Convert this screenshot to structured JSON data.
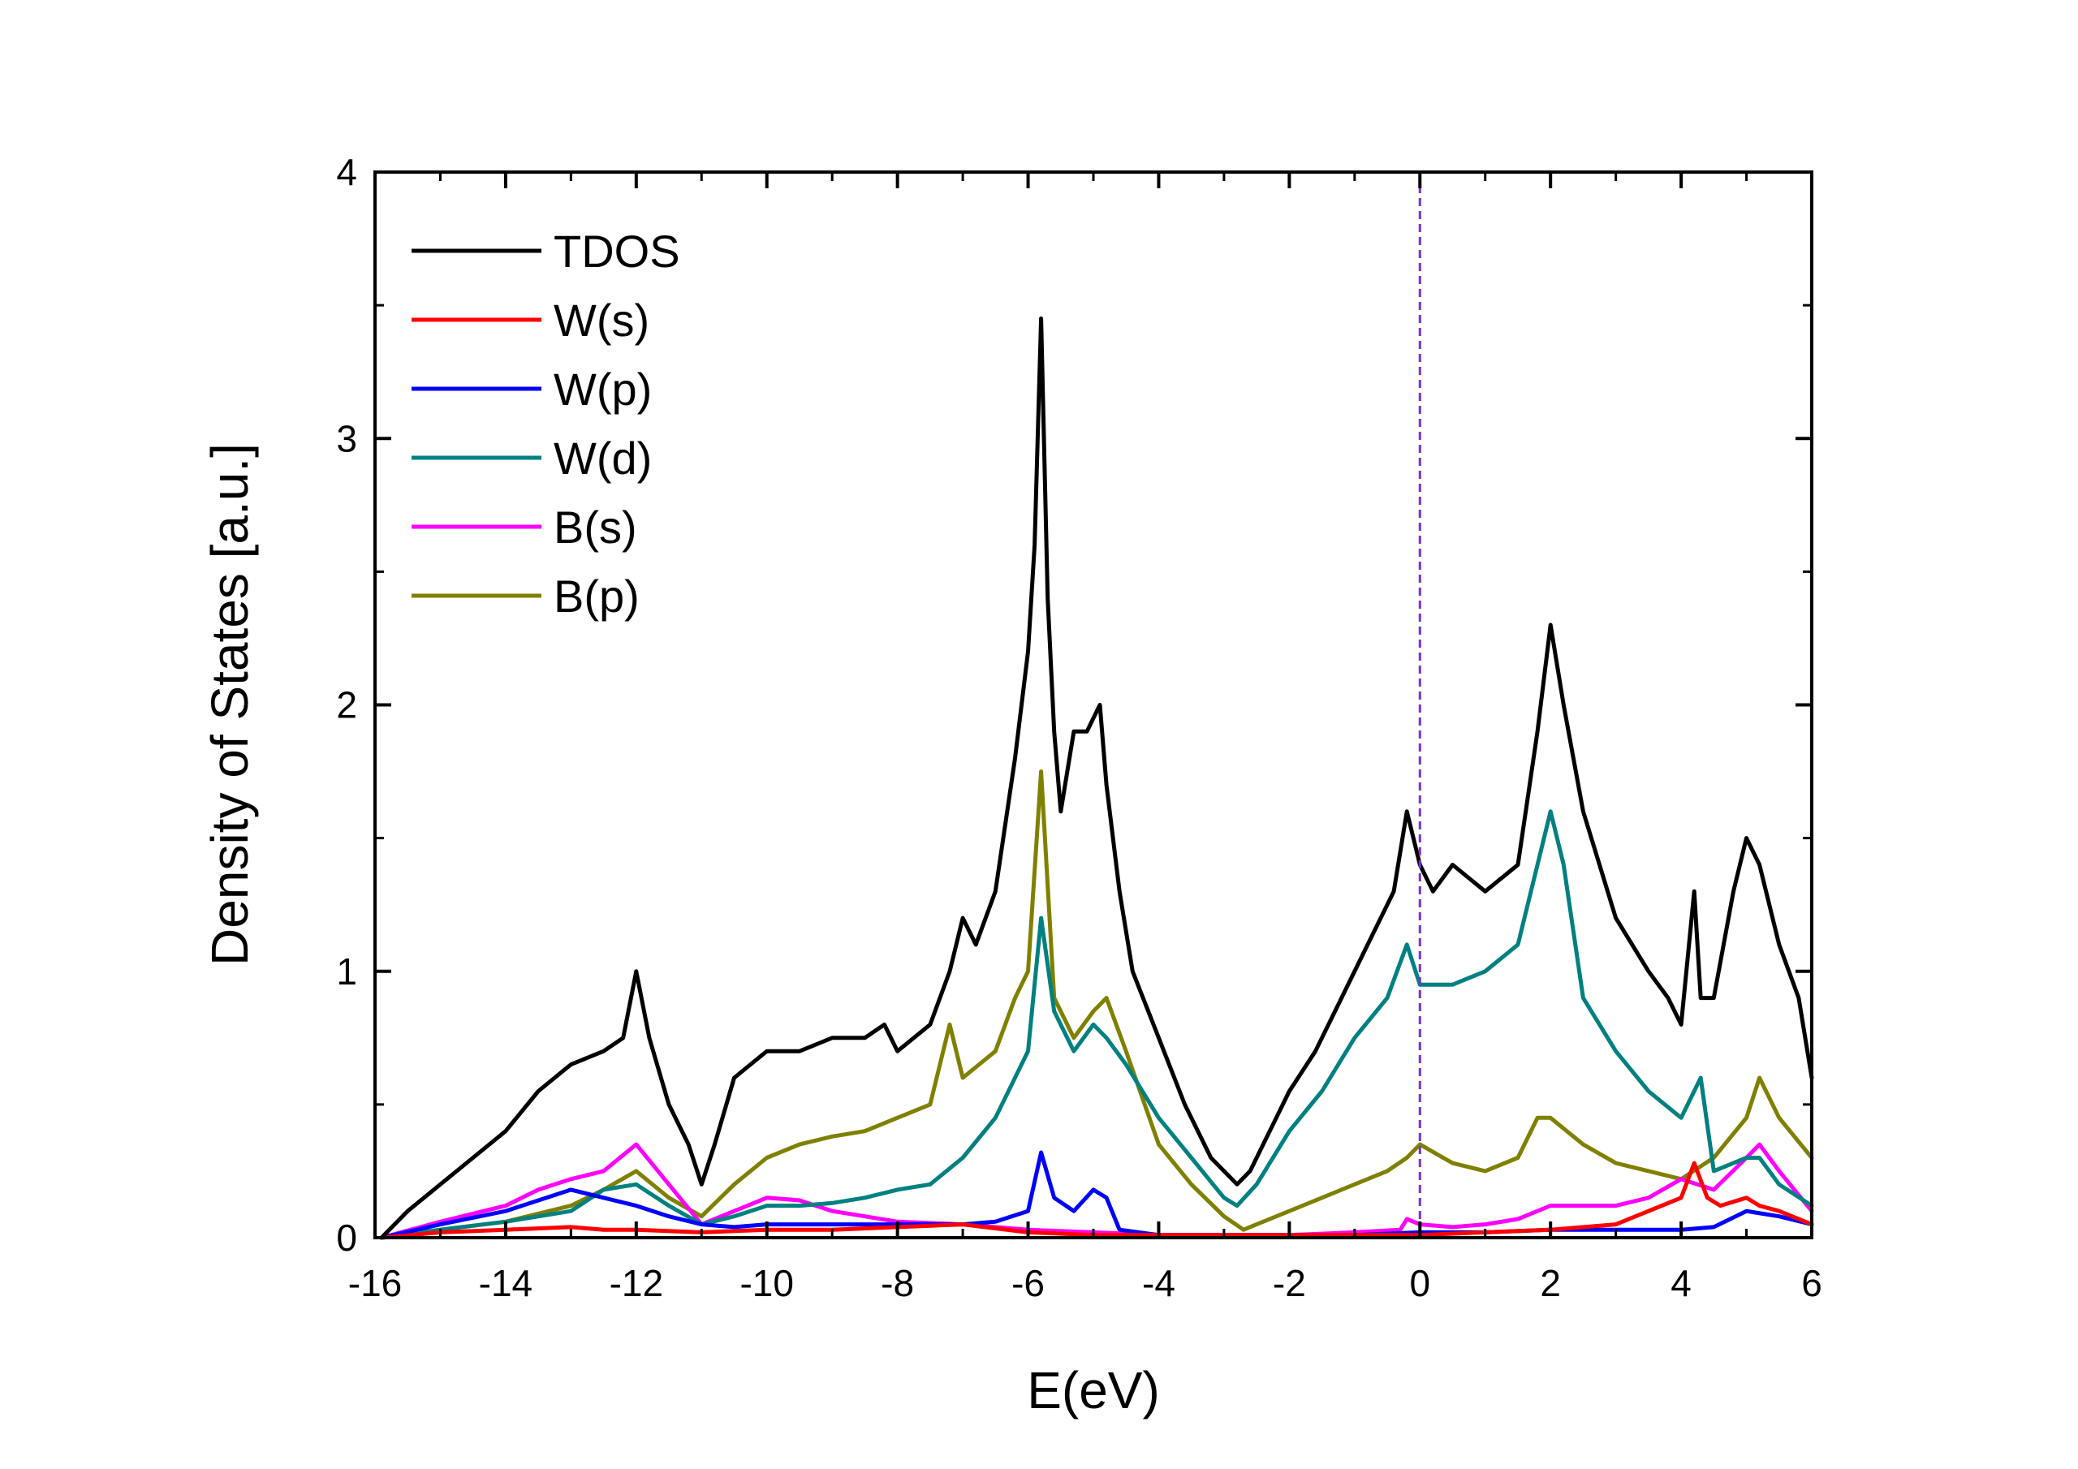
{
  "chart_data": {
    "type": "line",
    "xlabel": "E(eV)",
    "ylabel": "Density of States [a.u.]",
    "xlim": [
      -16,
      6
    ],
    "ylim": [
      0,
      4
    ],
    "xticks": [
      -16,
      -14,
      -12,
      -10,
      -8,
      -6,
      -4,
      -2,
      0,
      2,
      4,
      6
    ],
    "yticks": [
      0,
      1,
      2,
      3,
      4
    ],
    "grid": false,
    "legend_position": "top-left",
    "fermi_level": {
      "x": 0,
      "style": "dashed",
      "color": "#7b2fd8"
    },
    "series": [
      {
        "name": "TDOS",
        "color": "#000000",
        "x": [
          -15.9,
          -15.5,
          -15.0,
          -14.5,
          -14.0,
          -13.5,
          -13.0,
          -12.5,
          -12.2,
          -12.0,
          -11.8,
          -11.5,
          -11.2,
          -11.0,
          -10.8,
          -10.5,
          -10.0,
          -9.5,
          -9.0,
          -8.5,
          -8.2,
          -8.0,
          -7.5,
          -7.2,
          -7.0,
          -6.8,
          -6.5,
          -6.2,
          -6.0,
          -5.9,
          -5.8,
          -5.7,
          -5.6,
          -5.5,
          -5.3,
          -5.1,
          -4.9,
          -4.8,
          -4.6,
          -4.4,
          -4.0,
          -3.6,
          -3.2,
          -2.8,
          -2.6,
          -2.2,
          -2.0,
          -1.6,
          -1.2,
          -0.8,
          -0.4,
          -0.2,
          0.0,
          0.2,
          0.5,
          1.0,
          1.5,
          1.8,
          2.0,
          2.2,
          2.5,
          3.0,
          3.5,
          3.8,
          4.0,
          4.2,
          4.3,
          4.5,
          4.8,
          5.0,
          5.2,
          5.5,
          5.8,
          6.0
        ],
        "y": [
          0.0,
          0.1,
          0.2,
          0.3,
          0.4,
          0.55,
          0.65,
          0.7,
          0.75,
          1.0,
          0.75,
          0.5,
          0.35,
          0.2,
          0.35,
          0.6,
          0.7,
          0.7,
          0.75,
          0.75,
          0.8,
          0.7,
          0.8,
          1.0,
          1.2,
          1.1,
          1.3,
          1.8,
          2.2,
          2.6,
          3.45,
          2.4,
          1.9,
          1.6,
          1.9,
          1.9,
          2.0,
          1.7,
          1.3,
          1.0,
          0.75,
          0.5,
          0.3,
          0.2,
          0.25,
          0.45,
          0.55,
          0.7,
          0.9,
          1.1,
          1.3,
          1.6,
          1.4,
          1.3,
          1.4,
          1.3,
          1.4,
          1.9,
          2.3,
          2.0,
          1.6,
          1.2,
          1.0,
          0.9,
          0.8,
          1.3,
          0.9,
          0.9,
          1.3,
          1.5,
          1.4,
          1.1,
          0.9,
          0.6
        ]
      },
      {
        "name": "W(s)",
        "color": "#ff0000",
        "x": [
          -15.9,
          -15.0,
          -14.0,
          -13.0,
          -12.5,
          -12.0,
          -11.0,
          -10.0,
          -9.0,
          -8.0,
          -7.0,
          -6.0,
          -5.0,
          -4.0,
          -3.0,
          -2.0,
          -1.0,
          0.0,
          1.0,
          2.0,
          3.0,
          3.5,
          4.0,
          4.2,
          4.4,
          4.6,
          5.0,
          5.2,
          5.5,
          6.0
        ],
        "y": [
          0.0,
          0.02,
          0.03,
          0.04,
          0.03,
          0.03,
          0.02,
          0.03,
          0.03,
          0.04,
          0.05,
          0.02,
          0.01,
          0.01,
          0.01,
          0.01,
          0.01,
          0.01,
          0.02,
          0.03,
          0.05,
          0.1,
          0.15,
          0.28,
          0.15,
          0.12,
          0.15,
          0.12,
          0.1,
          0.05
        ]
      },
      {
        "name": "W(p)",
        "color": "#0000ff",
        "x": [
          -15.9,
          -15.0,
          -14.0,
          -13.0,
          -12.5,
          -12.0,
          -11.5,
          -11.0,
          -10.5,
          -10.0,
          -9.0,
          -8.0,
          -7.0,
          -6.5,
          -6.0,
          -5.8,
          -5.6,
          -5.3,
          -5.0,
          -4.8,
          -4.6,
          -4.0,
          -3.0,
          -2.0,
          -1.0,
          0.0,
          1.0,
          2.0,
          3.0,
          4.0,
          4.5,
          5.0,
          5.5,
          6.0
        ],
        "y": [
          0.0,
          0.05,
          0.1,
          0.18,
          0.15,
          0.12,
          0.08,
          0.05,
          0.04,
          0.05,
          0.05,
          0.05,
          0.05,
          0.06,
          0.1,
          0.32,
          0.15,
          0.1,
          0.18,
          0.15,
          0.03,
          0.01,
          0.01,
          0.01,
          0.01,
          0.02,
          0.02,
          0.03,
          0.03,
          0.03,
          0.04,
          0.1,
          0.08,
          0.05
        ]
      },
      {
        "name": "W(d)",
        "color": "#008080",
        "x": [
          -15.9,
          -15.0,
          -14.0,
          -13.0,
          -12.5,
          -12.0,
          -11.5,
          -11.0,
          -10.5,
          -10.0,
          -9.5,
          -9.0,
          -8.5,
          -8.0,
          -7.5,
          -7.0,
          -6.5,
          -6.0,
          -5.8,
          -5.6,
          -5.3,
          -5.0,
          -4.8,
          -4.5,
          -4.0,
          -3.5,
          -3.0,
          -2.8,
          -2.5,
          -2.0,
          -1.5,
          -1.0,
          -0.5,
          -0.2,
          0.0,
          0.5,
          1.0,
          1.5,
          1.8,
          2.0,
          2.2,
          2.5,
          3.0,
          3.5,
          4.0,
          4.3,
          4.5,
          5.0,
          5.2,
          5.5,
          6.0
        ],
        "y": [
          0.0,
          0.03,
          0.06,
          0.1,
          0.18,
          0.2,
          0.12,
          0.05,
          0.08,
          0.12,
          0.12,
          0.13,
          0.15,
          0.18,
          0.2,
          0.3,
          0.45,
          0.7,
          1.2,
          0.85,
          0.7,
          0.8,
          0.75,
          0.65,
          0.45,
          0.3,
          0.15,
          0.12,
          0.2,
          0.4,
          0.55,
          0.75,
          0.9,
          1.1,
          0.95,
          0.95,
          1.0,
          1.1,
          1.4,
          1.6,
          1.4,
          0.9,
          0.7,
          0.55,
          0.45,
          0.6,
          0.25,
          0.3,
          0.3,
          0.2,
          0.12
        ]
      },
      {
        "name": "B(s)",
        "color": "#ff00ff",
        "x": [
          -15.9,
          -15.0,
          -14.0,
          -13.5,
          -13.0,
          -12.5,
          -12.0,
          -11.5,
          -11.0,
          -10.5,
          -10.0,
          -9.5,
          -9.0,
          -8.5,
          -8.0,
          -7.0,
          -6.0,
          -5.0,
          -4.0,
          -3.0,
          -2.0,
          -1.0,
          -0.3,
          -0.2,
          0.0,
          0.5,
          1.0,
          1.5,
          2.0,
          2.5,
          3.0,
          3.5,
          4.0,
          4.5,
          5.0,
          5.2,
          5.5,
          6.0
        ],
        "y": [
          0.0,
          0.06,
          0.12,
          0.18,
          0.22,
          0.25,
          0.35,
          0.2,
          0.05,
          0.1,
          0.15,
          0.14,
          0.1,
          0.08,
          0.06,
          0.05,
          0.03,
          0.02,
          0.01,
          0.01,
          0.01,
          0.02,
          0.03,
          0.07,
          0.05,
          0.04,
          0.05,
          0.07,
          0.12,
          0.12,
          0.12,
          0.15,
          0.22,
          0.18,
          0.3,
          0.35,
          0.25,
          0.1
        ]
      },
      {
        "name": "B(p)",
        "color": "#808000",
        "x": [
          -15.9,
          -15.0,
          -14.0,
          -13.0,
          -12.5,
          -12.0,
          -11.5,
          -11.0,
          -10.5,
          -10.0,
          -9.5,
          -9.0,
          -8.5,
          -8.0,
          -7.5,
          -7.2,
          -7.0,
          -6.5,
          -6.2,
          -6.0,
          -5.8,
          -5.6,
          -5.3,
          -5.0,
          -4.8,
          -4.5,
          -4.0,
          -3.5,
          -3.0,
          -2.7,
          -2.5,
          -2.0,
          -1.5,
          -1.0,
          -0.5,
          -0.2,
          0.0,
          0.5,
          1.0,
          1.5,
          1.8,
          2.0,
          2.5,
          3.0,
          3.5,
          4.0,
          4.5,
          5.0,
          5.2,
          5.5,
          6.0
        ],
        "y": [
          0.0,
          0.03,
          0.06,
          0.12,
          0.18,
          0.25,
          0.15,
          0.08,
          0.2,
          0.3,
          0.35,
          0.38,
          0.4,
          0.45,
          0.5,
          0.8,
          0.6,
          0.7,
          0.9,
          1.0,
          1.75,
          0.9,
          0.75,
          0.85,
          0.9,
          0.7,
          0.35,
          0.2,
          0.08,
          0.03,
          0.05,
          0.1,
          0.15,
          0.2,
          0.25,
          0.3,
          0.35,
          0.28,
          0.25,
          0.3,
          0.45,
          0.45,
          0.35,
          0.28,
          0.25,
          0.22,
          0.3,
          0.45,
          0.6,
          0.45,
          0.3
        ]
      }
    ]
  }
}
